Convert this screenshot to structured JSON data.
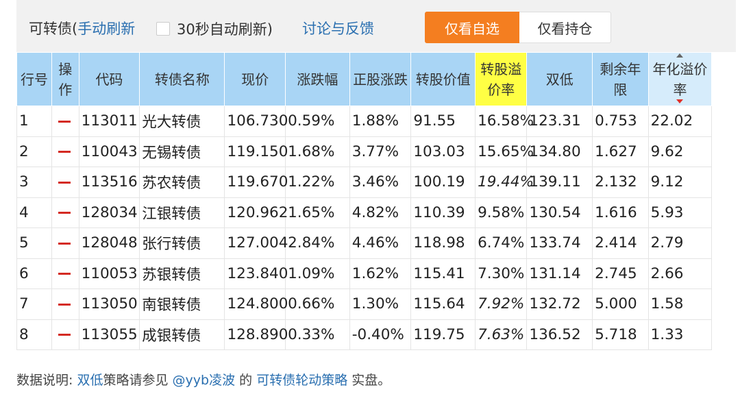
{
  "toolbar": {
    "title_prefix": "可转债(",
    "manual_refresh": "手动刷新",
    "auto_refresh_label": "30秒自动刷新)",
    "auto_refresh_checked": false,
    "feedback": "讨论与反馈",
    "watchlist_only": "仅看自选",
    "holdings_only": "仅看持仓"
  },
  "table": {
    "headers": [
      "行号",
      "操作",
      "代码",
      "转债名称",
      "现价",
      "涨跌幅",
      "正股涨跌",
      "转股价值",
      "转股溢价率",
      "双低",
      "剩余年限",
      "年化溢价率"
    ],
    "rows": [
      {
        "no": "1",
        "code": "113011",
        "name": "光大转债",
        "price": "106.730",
        "chg": "0.59%",
        "stock_chg": "1.88%",
        "conv_value": "91.55",
        "premium": "16.58%",
        "double_low": "123.31",
        "years": "0.753",
        "annual": "22.02"
      },
      {
        "no": "2",
        "code": "110043",
        "name": "无锡转债",
        "price": "119.150",
        "chg": "1.68%",
        "stock_chg": "3.77%",
        "conv_value": "103.03",
        "premium": "15.65%",
        "double_low": "134.80",
        "years": "1.627",
        "annual": "9.62"
      },
      {
        "no": "3",
        "code": "113516",
        "name": "苏农转债",
        "price": "119.670",
        "chg": "1.22%",
        "stock_chg": "3.46%",
        "conv_value": "100.19",
        "premium": "19.44%",
        "double_low": "139.11",
        "years": "2.132",
        "annual": "9.12"
      },
      {
        "no": "4",
        "code": "128034",
        "name": "江银转债",
        "price": "120.962",
        "chg": "1.65%",
        "stock_chg": "4.82%",
        "conv_value": "110.39",
        "premium": "9.58%",
        "double_low": "130.54",
        "years": "1.616",
        "annual": "5.93"
      },
      {
        "no": "5",
        "code": "128048",
        "name": "张行转债",
        "price": "127.004",
        "chg": "2.84%",
        "stock_chg": "4.46%",
        "conv_value": "118.98",
        "premium": "6.74%",
        "double_low": "133.74",
        "years": "2.414",
        "annual": "2.79"
      },
      {
        "no": "6",
        "code": "110053",
        "name": "苏银转债",
        "price": "123.840",
        "chg": "1.09%",
        "stock_chg": "1.62%",
        "conv_value": "115.41",
        "premium": "7.30%",
        "double_low": "131.14",
        "years": "2.745",
        "annual": "2.66"
      },
      {
        "no": "7",
        "code": "113050",
        "name": "南银转债",
        "price": "124.800",
        "chg": "0.66%",
        "stock_chg": "1.30%",
        "conv_value": "115.64",
        "premium": "7.92%",
        "double_low": "132.72",
        "years": "5.000",
        "annual": "1.58"
      },
      {
        "no": "8",
        "code": "113055",
        "name": "成银转债",
        "price": "128.890",
        "chg": "0.33%",
        "stock_chg": "-0.40%",
        "conv_value": "119.75",
        "premium": "7.63%",
        "double_low": "136.52",
        "years": "5.718",
        "annual": "1.33"
      }
    ]
  },
  "note": {
    "prefix": "数据说明:",
    "link1": "双低",
    "mid1": "策略请参见",
    "link2": "@yyb凌波",
    "mid2": "的",
    "link3": "可转债轮动策略",
    "suffix": "实盘。"
  },
  "colors": {
    "accent": "#f47e20",
    "header": "#a9d5f5",
    "highlight_header": "#ffff44",
    "link": "#2a6fb0",
    "up": "#c8232c",
    "down": "#1b8a2c"
  }
}
